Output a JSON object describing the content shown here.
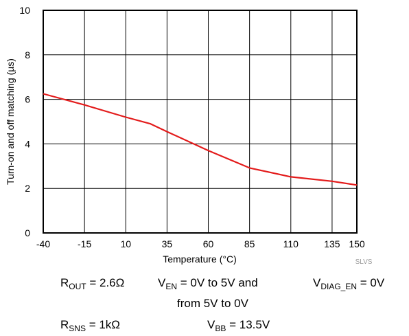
{
  "chart_data": {
    "type": "line",
    "xlabel": "Temperature (°C)",
    "ylabel": "Turn-on and off matching (µs)",
    "x_ticks": [
      -40,
      -15,
      10,
      35,
      60,
      85,
      110,
      135,
      150
    ],
    "y_ticks": [
      0,
      2,
      4,
      6,
      8,
      10
    ],
    "xlim": [
      -40,
      150
    ],
    "ylim": [
      0,
      10
    ],
    "grid": true,
    "series": [
      {
        "color": "#e31b1b",
        "x": [
          -40,
          -15,
          10,
          25,
          35,
          60,
          85,
          110,
          135,
          150
        ],
        "y": [
          6.25,
          5.75,
          5.2,
          4.9,
          4.55,
          3.7,
          2.92,
          2.52,
          2.32,
          2.15
        ]
      }
    ]
  },
  "doc_code": "SLVS",
  "conditions": {
    "r_out": {
      "base": "R",
      "sub": "OUT",
      "rest": " = 2.6Ω"
    },
    "v_en": {
      "base": "V",
      "sub": "EN",
      "rest": " = 0V to 5V and"
    },
    "v_en_cont": "from 5V to 0V",
    "v_diag_en": {
      "base": "V",
      "sub": "DIAG_EN",
      "rest": " = 0V"
    },
    "r_sns": {
      "base": "R",
      "sub": "SNS",
      "rest": " = 1kΩ"
    },
    "v_bb": {
      "base": "V",
      "sub": "BB",
      "rest": " = 13.5V"
    }
  }
}
